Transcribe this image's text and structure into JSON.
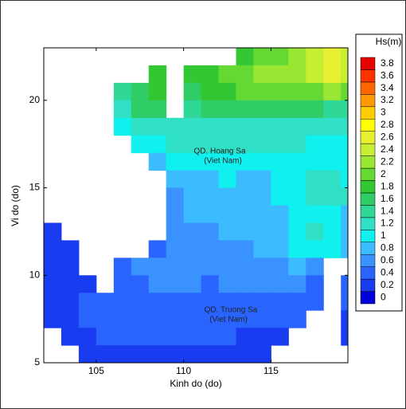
{
  "chart_data": {
    "type": "heatmap",
    "xlabel": "Kinh do (do)",
    "ylabel": "Vi do (do)",
    "xlim": [
      102,
      119.4
    ],
    "ylim": [
      5,
      23
    ],
    "xticks": [
      105,
      110,
      115
    ],
    "yticks": [
      5,
      10,
      15,
      20
    ],
    "x": [
      102.5,
      103.5,
      104.5,
      105.5,
      106.5,
      107.5,
      108.5,
      109.5,
      110.5,
      111.5,
      112.5,
      113.5,
      114.5,
      115.5,
      116.5,
      117.5,
      118.5,
      119.5
    ],
    "y": [
      22.5,
      21.5,
      20.5,
      19.5,
      18.5,
      17.5,
      16.5,
      15.5,
      14.5,
      13.5,
      12.5,
      11.5,
      10.5,
      9.5,
      8.5,
      7.5,
      6.5,
      5.5
    ],
    "values": [
      [
        null,
        null,
        null,
        null,
        null,
        null,
        null,
        null,
        null,
        null,
        null,
        1.9,
        2.0,
        2.1,
        2.3,
        2.5,
        2.6,
        2.5
      ],
      [
        null,
        null,
        null,
        null,
        null,
        null,
        1.9,
        null,
        1.8,
        1.9,
        2.0,
        2.1,
        2.2,
        2.2,
        2.3,
        2.4,
        2.6,
        2.5
      ],
      [
        null,
        null,
        null,
        null,
        1.4,
        1.7,
        1.9,
        null,
        1.7,
        1.8,
        1.9,
        2.0,
        2.0,
        2.0,
        2.1,
        2.1,
        2.2,
        2.0
      ],
      [
        null,
        null,
        null,
        null,
        1.3,
        1.6,
        1.7,
        null,
        1.5,
        1.6,
        1.7,
        1.7,
        1.7,
        1.7,
        1.6,
        1.6,
        1.5,
        1.4
      ],
      [
        null,
        null,
        null,
        null,
        1.1,
        1.2,
        1.3,
        1.3,
        1.3,
        1.3,
        1.3,
        1.3,
        1.3,
        1.3,
        1.2,
        1.2,
        1.2,
        1.2
      ],
      [
        null,
        null,
        null,
        null,
        null,
        1.0,
        1.1,
        1.2,
        1.2,
        1.2,
        1.2,
        1.3,
        1.3,
        1.2,
        1.2,
        1.1,
        1.1,
        1.1
      ],
      [
        null,
        null,
        null,
        null,
        null,
        null,
        0.9,
        1.0,
        1.1,
        1.1,
        1.1,
        1.1,
        1.1,
        1.1,
        1.0,
        1.0,
        1.1,
        1.0
      ],
      [
        null,
        null,
        null,
        null,
        null,
        null,
        null,
        0.8,
        0.9,
        0.9,
        1.0,
        0.9,
        0.9,
        1.0,
        1.1,
        1.2,
        1.2,
        1.1
      ],
      [
        null,
        null,
        null,
        null,
        null,
        null,
        null,
        0.7,
        0.8,
        0.9,
        0.9,
        0.9,
        0.9,
        1.0,
        1.1,
        1.2,
        1.3,
        1.2
      ],
      [
        null,
        null,
        null,
        null,
        null,
        null,
        null,
        0.7,
        0.8,
        0.8,
        0.8,
        0.8,
        0.8,
        0.9,
        1.0,
        1.0,
        1.0,
        0.9
      ],
      [
        0.3,
        null,
        null,
        null,
        null,
        null,
        null,
        0.7,
        0.7,
        0.7,
        0.8,
        0.8,
        0.8,
        0.9,
        1.1,
        1.2,
        1.1,
        0.9
      ],
      [
        0.3,
        0.3,
        null,
        null,
        null,
        null,
        0.5,
        0.6,
        0.7,
        0.7,
        0.7,
        0.7,
        0.8,
        0.8,
        1.0,
        1.1,
        1.0,
        0.8
      ],
      [
        0.3,
        0.3,
        null,
        null,
        0.5,
        0.6,
        0.6,
        0.6,
        0.6,
        0.6,
        0.7,
        0.7,
        0.7,
        0.7,
        0.8,
        0.7,
        null,
        null
      ],
      [
        0.3,
        0.3,
        0.2,
        null,
        0.4,
        0.5,
        0.6,
        0.6,
        0.6,
        0.5,
        0.6,
        0.6,
        0.6,
        0.6,
        0.6,
        0.5,
        null,
        0.4
      ],
      [
        0.3,
        0.3,
        0.4,
        0.4,
        0.4,
        0.5,
        0.5,
        0.5,
        0.5,
        0.5,
        0.5,
        0.5,
        0.5,
        0.5,
        0.5,
        0.4,
        null,
        0.4
      ],
      [
        0.3,
        0.3,
        0.4,
        0.4,
        0.4,
        0.5,
        0.5,
        0.5,
        0.5,
        0.5,
        0.5,
        0.5,
        0.5,
        0.5,
        0.4,
        null,
        null,
        0.3
      ],
      [
        null,
        0.3,
        0.3,
        0.4,
        0.4,
        0.4,
        0.4,
        0.4,
        0.4,
        0.4,
        0.4,
        0.3,
        0.3,
        0.3,
        null,
        null,
        null,
        0.3
      ],
      [
        null,
        null,
        0.3,
        0.3,
        0.3,
        0.3,
        0.3,
        0.3,
        0.3,
        0.3,
        0.3,
        0.2,
        0.3,
        null,
        null,
        null,
        null,
        null
      ]
    ],
    "colorbar": {
      "title": "Hs(m)",
      "ticks": [
        0,
        0.2,
        0.4,
        0.6,
        0.8,
        1,
        1.2,
        1.4,
        1.6,
        1.8,
        2,
        2.2,
        2.4,
        2.6,
        2.8,
        3,
        3.2,
        3.4,
        3.6,
        3.8
      ],
      "colors": [
        "#0000d8",
        "#1a3cf0",
        "#2a64ff",
        "#3a92ff",
        "#3cbcff",
        "#10f0ee",
        "#30e0c4",
        "#30d898",
        "#30cc66",
        "#33c833",
        "#66d833",
        "#99e633",
        "#c8ee33",
        "#e8ee30",
        "#ffff00",
        "#ffcc00",
        "#ff9900",
        "#ff6600",
        "#ff3300",
        "#e80000"
      ]
    },
    "annotations": [
      "QD. Hoang Sa",
      "(Viet Nam)",
      "QD. Truong Sa",
      "(Viet Nam)"
    ]
  }
}
